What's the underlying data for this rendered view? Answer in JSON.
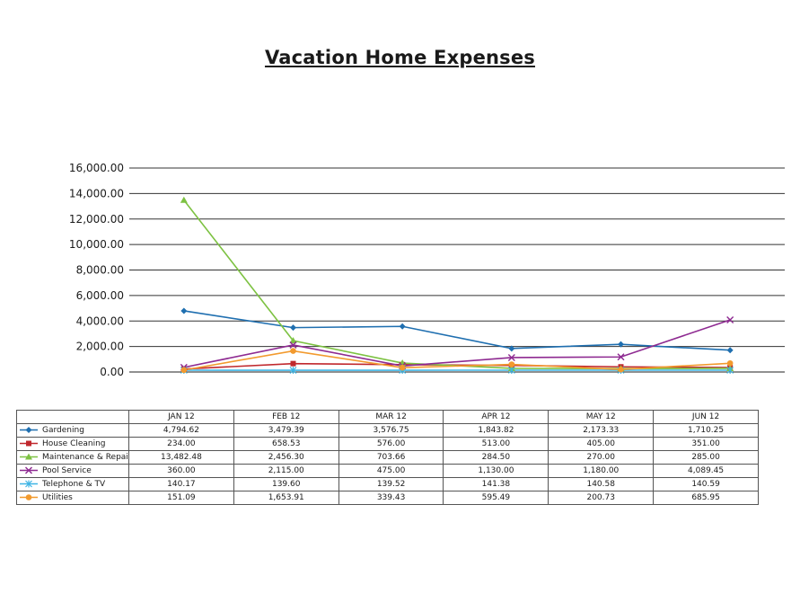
{
  "chart_data": {
    "type": "line",
    "title": "Vacation Home Expenses",
    "categories": [
      "JAN 12",
      "FEB 12",
      "MAR 12",
      "APR 12",
      "MAY 12",
      "JUN 12"
    ],
    "y_tick_labels": [
      "16,000.00",
      "14,000.00",
      "12,000.00",
      "10,000.00",
      "8,000.00",
      "6,000.00",
      "4,000.00",
      "2,000.00",
      "0.00"
    ],
    "ylim": [
      0,
      16000
    ],
    "grid": true,
    "legend": "table-below",
    "series": [
      {
        "name": "Gardening",
        "color": "#1f6fb0",
        "marker": "diamond",
        "values": [
          4794.62,
          3479.39,
          3576.75,
          1843.82,
          2173.33,
          1710.25
        ],
        "labels": [
          "4,794.62",
          "3,479.39",
          "3,576.75",
          "1,843.82",
          "2,173.33",
          "1,710.25"
        ]
      },
      {
        "name": "House Cleaning",
        "color": "#c0282d",
        "marker": "square",
        "values": [
          234.0,
          658.53,
          576.0,
          513.0,
          405.0,
          351.0
        ],
        "labels": [
          "234.00",
          "658.53",
          "576.00",
          "513.00",
          "405.00",
          "351.00"
        ]
      },
      {
        "name": "Maintenance & Repairs",
        "color": "#7dc242",
        "marker": "triangle",
        "values": [
          13482.48,
          2456.3,
          703.66,
          284.5,
          270.0,
          285.0
        ],
        "labels": [
          "13,482.48",
          "2,456.30",
          "703.66",
          "284.50",
          "270.00",
          "285.00"
        ]
      },
      {
        "name": "Pool Service",
        "color": "#8e2a91",
        "marker": "x",
        "values": [
          360.0,
          2115.0,
          475.0,
          1130.0,
          1180.0,
          4089.45
        ],
        "labels": [
          "360.00",
          "2,115.00",
          "475.00",
          "1,130.00",
          "1,180.00",
          "4,089.45"
        ]
      },
      {
        "name": "Telephone & TV",
        "color": "#3fb5e5",
        "marker": "star",
        "values": [
          140.17,
          139.6,
          139.52,
          141.38,
          140.58,
          140.59
        ],
        "labels": [
          "140.17",
          "139.60",
          "139.52",
          "141.38",
          "140.58",
          "140.59"
        ]
      },
      {
        "name": "Utilities",
        "color": "#f29a2e",
        "marker": "circle",
        "values": [
          151.09,
          1653.91,
          339.43,
          595.49,
          200.73,
          685.95
        ],
        "labels": [
          "151.09",
          "1,653.91",
          "339.43",
          "595.49",
          "200.73",
          "685.95"
        ]
      }
    ]
  }
}
